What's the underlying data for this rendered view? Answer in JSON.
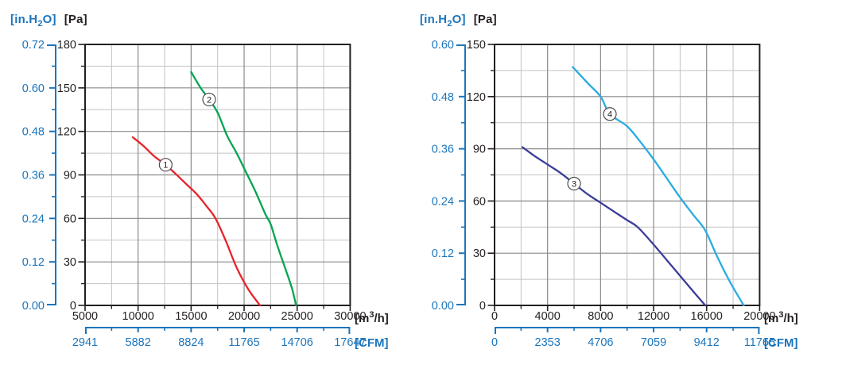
{
  "colors": {
    "secondary_axis_blue": "#1b75bc",
    "axis_black": "#231f20",
    "grid_major": "#8a8a8a",
    "grid_minor": "#c3c3c3",
    "marker_fill": "#ffffff",
    "marker_stroke": "#4d4d4f",
    "curve1_red": "#e8232a",
    "curve2_green": "#00a551",
    "curve3_navy": "#3b3d98",
    "curve4_cyan": "#29abe2"
  },
  "chart_data": [
    {
      "type": "line",
      "title_secondary": {
        "pre": "[in.H",
        "sub": "2",
        "post": "O]"
      },
      "y_primary": {
        "unit": "[Pa]",
        "min": 0,
        "max": 180,
        "major_step": 30,
        "minor_step": 15,
        "tick_labels": [
          "180",
          "150",
          "120",
          "90",
          "60",
          "30",
          "0"
        ]
      },
      "y_secondary": {
        "unit_pre": "[in.H",
        "unit_sub": "2",
        "unit_post": "O]",
        "tick_labels": [
          "0.72",
          "0.60",
          "0.48",
          "0.36",
          "0.24",
          "0.12",
          "0.00"
        ]
      },
      "x_primary": {
        "unit_pre": "[m",
        "unit_sup": "3",
        "unit_post": "/h]",
        "min": 5000,
        "max": 30000,
        "major_step": 5000,
        "minor_step": 2500,
        "tick_labels": [
          "5000",
          "10000",
          "15000",
          "20000",
          "25000",
          "30000"
        ]
      },
      "x_secondary": {
        "unit": "[CFM]",
        "tick_labels": [
          "2941",
          "5882",
          "8824",
          "11765",
          "14706",
          "17647"
        ]
      },
      "series": [
        {
          "name": "curve-1",
          "marker": "1",
          "color_key": "curve1_red",
          "marker_point": [
            12600,
            97
          ],
          "points": [
            [
              9500,
              116
            ],
            [
              10500,
              110
            ],
            [
              11500,
              103
            ],
            [
              12600,
              97
            ],
            [
              13500,
              91
            ],
            [
              14500,
              84
            ],
            [
              15500,
              77
            ],
            [
              16400,
              69
            ],
            [
              17300,
              60
            ],
            [
              18300,
              44
            ],
            [
              19300,
              26
            ],
            [
              20400,
              11
            ],
            [
              21500,
              0
            ]
          ]
        },
        {
          "name": "curve-2",
          "marker": "2",
          "color_key": "curve2_green",
          "marker_point": [
            16700,
            142
          ],
          "points": [
            [
              15000,
              161
            ],
            [
              15900,
              150
            ],
            [
              16700,
              142
            ],
            [
              17500,
              133
            ],
            [
              18400,
              117
            ],
            [
              19300,
              105
            ],
            [
              20100,
              93
            ],
            [
              21100,
              78
            ],
            [
              22000,
              63
            ],
            [
              22500,
              56
            ],
            [
              23100,
              42
            ],
            [
              23900,
              25
            ],
            [
              24500,
              12
            ],
            [
              24900,
              0
            ]
          ]
        }
      ]
    },
    {
      "type": "line",
      "title_secondary": {
        "pre": "[in.H",
        "sub": "2",
        "post": "O]"
      },
      "y_primary": {
        "unit": "[Pa]",
        "min": 0,
        "max": 150,
        "major_step": 30,
        "minor_step": 15,
        "tick_labels": [
          "150",
          "120",
          "90",
          "60",
          "30",
          "0"
        ]
      },
      "y_secondary": {
        "unit_pre": "[in.H",
        "unit_sub": "2",
        "unit_post": "O]",
        "tick_labels": [
          "0.60",
          "0.48",
          "0.36",
          "0.24",
          "0.12",
          "0.00"
        ]
      },
      "x_primary": {
        "unit_pre": "[m",
        "unit_sup": "3",
        "unit_post": "/h]",
        "min": 0,
        "max": 20000,
        "major_step": 4000,
        "minor_step": 2000,
        "tick_labels": [
          "0",
          "4000",
          "8000",
          "12000",
          "16000",
          "20000"
        ]
      },
      "x_secondary": {
        "unit": "[CFM]",
        "tick_labels": [
          "0",
          "2353",
          "4706",
          "7059",
          "9412",
          "11765"
        ]
      },
      "series": [
        {
          "name": "curve-3",
          "marker": "3",
          "color_key": "curve3_navy",
          "marker_point": [
            6000,
            70
          ],
          "points": [
            [
              2100,
              91
            ],
            [
              3000,
              86
            ],
            [
              4000,
              81
            ],
            [
              5000,
              76
            ],
            [
              6000,
              70
            ],
            [
              7000,
              64
            ],
            [
              8000,
              59
            ],
            [
              9000,
              54
            ],
            [
              10000,
              49
            ],
            [
              10800,
              45
            ],
            [
              12000,
              35
            ],
            [
              13000,
              26
            ],
            [
              14000,
              17
            ],
            [
              15000,
              8
            ],
            [
              15900,
              0
            ]
          ]
        },
        {
          "name": "curve-4",
          "marker": "4",
          "color_key": "curve4_cyan",
          "marker_point": [
            8700,
            110
          ],
          "points": [
            [
              5900,
              137
            ],
            [
              7000,
              128
            ],
            [
              8000,
              120
            ],
            [
              8700,
              110
            ],
            [
              10000,
              103
            ],
            [
              11000,
              94
            ],
            [
              12000,
              84
            ],
            [
              13000,
              73
            ],
            [
              14000,
              62
            ],
            [
              15000,
              52
            ],
            [
              15900,
              43
            ],
            [
              16800,
              28
            ],
            [
              17800,
              13
            ],
            [
              18800,
              0
            ]
          ]
        }
      ]
    }
  ]
}
